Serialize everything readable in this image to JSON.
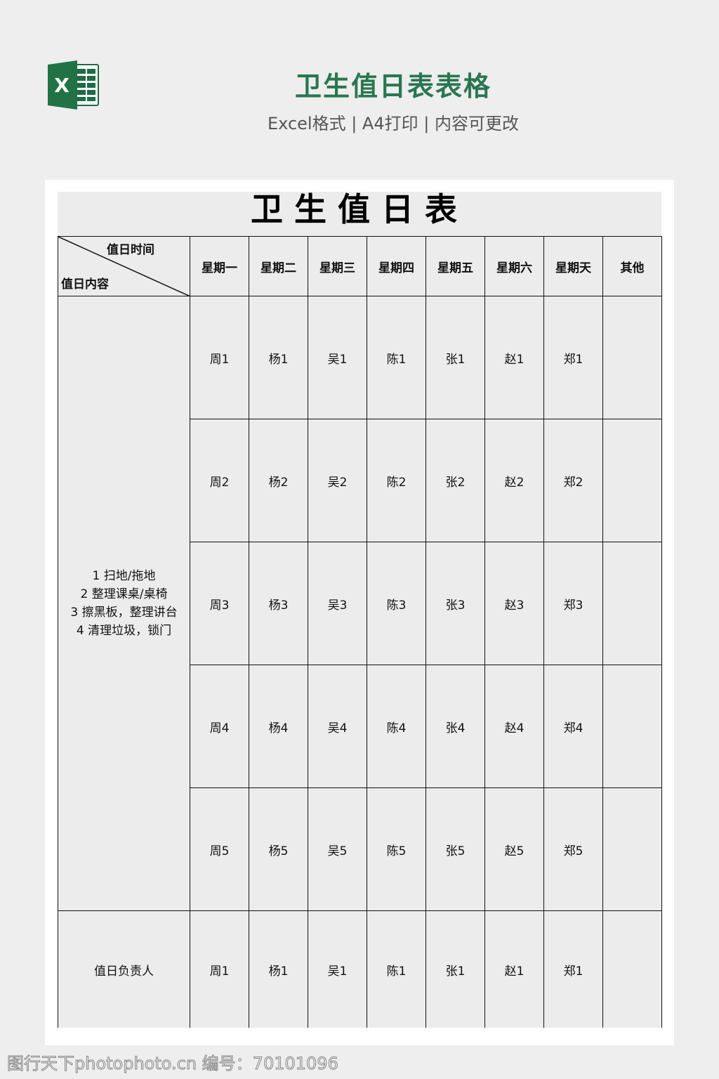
{
  "header": {
    "title": "卫生值日表表格",
    "subtitle": "Excel格式 | A4打印 | 内容可更改",
    "logo_icon": "excel-icon",
    "accent": "#2a7650"
  },
  "sheet": {
    "title": "卫生值日表",
    "corner_top": "值日时间",
    "corner_bottom": "值日内容",
    "columns": [
      "星期一",
      "星期二",
      "星期三",
      "星期四",
      "星期五",
      "星期六",
      "星期天",
      "其他"
    ],
    "content_lines": [
      "1 扫地/拖地",
      "2 整理课桌/桌椅",
      "3 擦黑板，整理讲台",
      "4 清理垃圾，锁门"
    ],
    "rows": [
      [
        "周1",
        "杨1",
        "吴1",
        "陈1",
        "张1",
        "赵1",
        "郑1",
        ""
      ],
      [
        "周2",
        "杨2",
        "吴2",
        "陈2",
        "张2",
        "赵2",
        "郑2",
        ""
      ],
      [
        "周3",
        "杨3",
        "吴3",
        "陈3",
        "张3",
        "赵3",
        "郑3",
        ""
      ],
      [
        "周4",
        "杨4",
        "吴4",
        "陈4",
        "张4",
        "赵4",
        "郑4",
        ""
      ],
      [
        "周5",
        "杨5",
        "吴5",
        "陈5",
        "张5",
        "赵5",
        "郑5",
        ""
      ]
    ],
    "leader_label": "值日负责人",
    "leader_row": [
      "周1",
      "杨1",
      "吴1",
      "陈1",
      "张1",
      "赵1",
      "郑1",
      ""
    ]
  },
  "watermark": "图行天下photophoto.cn 编号：70101096"
}
